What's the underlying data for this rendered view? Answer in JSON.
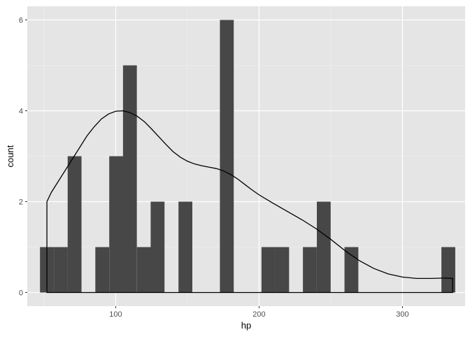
{
  "chart_data": {
    "type": "histogram",
    "xlabel": "hp",
    "ylabel": "count",
    "xlim": [
      38.3,
      343.7
    ],
    "ylim": [
      -0.3,
      6.3
    ],
    "x_ticks": [
      100,
      200,
      300
    ],
    "y_ticks": [
      0,
      2,
      4,
      6
    ],
    "bin_width": 9.655,
    "bins": [
      {
        "x": 52,
        "count": 1
      },
      {
        "x": 61.7,
        "count": 1
      },
      {
        "x": 71.3,
        "count": 3
      },
      {
        "x": 81.0,
        "count": 0
      },
      {
        "x": 90.6,
        "count": 1
      },
      {
        "x": 100.3,
        "count": 3
      },
      {
        "x": 109.9,
        "count": 5
      },
      {
        "x": 119.6,
        "count": 1
      },
      {
        "x": 129.2,
        "count": 2
      },
      {
        "x": 138.9,
        "count": 0
      },
      {
        "x": 148.6,
        "count": 2
      },
      {
        "x": 158.2,
        "count": 0
      },
      {
        "x": 167.9,
        "count": 0
      },
      {
        "x": 177.5,
        "count": 6
      },
      {
        "x": 187.2,
        "count": 0
      },
      {
        "x": 196.8,
        "count": 0
      },
      {
        "x": 206.5,
        "count": 1
      },
      {
        "x": 216.1,
        "count": 1
      },
      {
        "x": 225.8,
        "count": 0
      },
      {
        "x": 235.4,
        "count": 1
      },
      {
        "x": 245.1,
        "count": 2
      },
      {
        "x": 254.8,
        "count": 0
      },
      {
        "x": 264.4,
        "count": 1
      },
      {
        "x": 274.1,
        "count": 0
      },
      {
        "x": 283.7,
        "count": 0
      },
      {
        "x": 293.4,
        "count": 0
      },
      {
        "x": 303.0,
        "count": 0
      },
      {
        "x": 312.7,
        "count": 0
      },
      {
        "x": 322.3,
        "count": 0
      },
      {
        "x": 332.0,
        "count": 1
      }
    ],
    "density_curve": {
      "x": [
        52,
        55,
        60,
        65,
        70,
        75,
        80,
        85,
        90,
        95,
        100,
        105,
        110,
        115,
        120,
        125,
        130,
        135,
        140,
        145,
        150,
        155,
        160,
        165,
        170,
        175,
        180,
        185,
        190,
        195,
        200,
        210,
        220,
        230,
        240,
        250,
        260,
        270,
        280,
        290,
        300,
        310,
        320,
        330,
        335
      ],
      "y": [
        2.0,
        2.2,
        2.45,
        2.7,
        2.95,
        3.2,
        3.45,
        3.65,
        3.82,
        3.93,
        3.99,
        4.0,
        3.96,
        3.88,
        3.76,
        3.6,
        3.43,
        3.26,
        3.1,
        2.98,
        2.89,
        2.83,
        2.79,
        2.76,
        2.73,
        2.68,
        2.6,
        2.5,
        2.38,
        2.26,
        2.15,
        1.96,
        1.78,
        1.6,
        1.4,
        1.17,
        0.92,
        0.7,
        0.53,
        0.41,
        0.34,
        0.31,
        0.31,
        0.32,
        0.31
      ]
    },
    "colors": {
      "panel_background": "#e5e5e5",
      "grid_major": "#ffffff",
      "grid_minor": "#f2f2f2",
      "bar_fill": "#474747",
      "density_line": "#000000",
      "axis_text": "#4d4d4d",
      "axis_title": "#000000"
    },
    "grid": true
  }
}
